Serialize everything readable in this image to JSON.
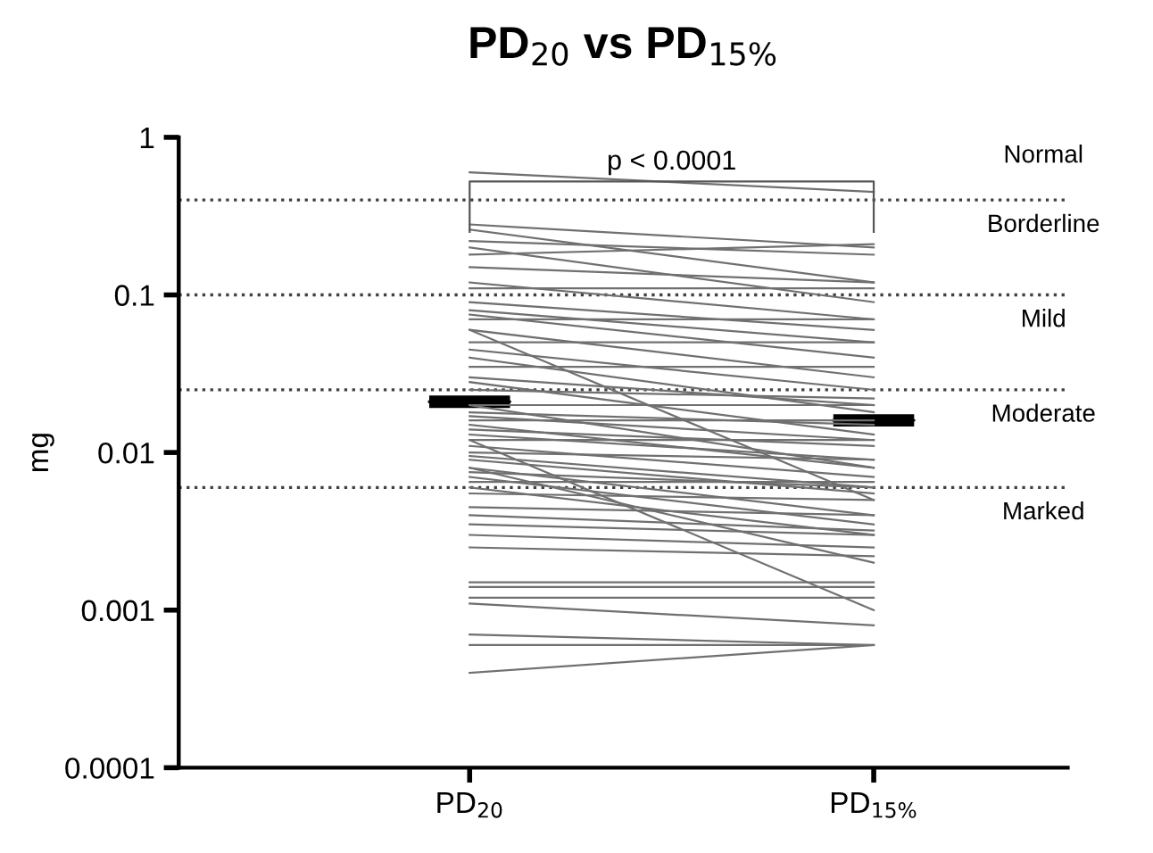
{
  "chart_data": {
    "type": "line",
    "title": "PD$_{20}$ vs PD$_{15%}$",
    "ylabel": "mg",
    "categories": [
      "PD$_{20}$",
      "PD$_{15%}$"
    ],
    "log": "y",
    "ylim": [
      0.0001,
      1
    ],
    "yticks": [
      0.0001,
      0.001,
      0.01,
      0.1,
      1
    ],
    "grid": false,
    "legend": false,
    "annotations": [
      "p < 0.0001",
      "Normal",
      "Borderline",
      "Mild",
      "Moderate",
      "Marked"
    ],
    "ref_lines": [
      {
        "axis": "y",
        "value": 0.4,
        "line_style": "dotted",
        "color": "#404040"
      },
      {
        "axis": "y",
        "value": 0.1,
        "line_style": "dotted",
        "color": "#404040"
      },
      {
        "axis": "y",
        "value": 0.025,
        "line_style": "dotted",
        "color": "#404040"
      },
      {
        "axis": "y",
        "value": 0.006,
        "line_style": "dotted",
        "color": "#404040"
      }
    ],
    "series": [
      {
        "color": "#707070",
        "values": [
          0.6,
          0.45
        ]
      },
      {
        "color": "#707070",
        "values": [
          0.28,
          0.2
        ]
      },
      {
        "color": "#707070",
        "values": [
          0.26,
          0.12
        ]
      },
      {
        "color": "#707070",
        "values": [
          0.22,
          0.18
        ]
      },
      {
        "color": "#707070",
        "values": [
          0.2,
          0.09
        ]
      },
      {
        "color": "#707070",
        "values": [
          0.18,
          0.21
        ]
      },
      {
        "color": "#707070",
        "values": [
          0.15,
          0.12
        ]
      },
      {
        "color": "#707070",
        "values": [
          0.12,
          0.07
        ]
      },
      {
        "color": "#707070",
        "values": [
          0.11,
          0.11
        ]
      },
      {
        "color": "#707070",
        "values": [
          0.09,
          0.06
        ]
      },
      {
        "color": "#707070",
        "values": [
          0.08,
          0.05
        ]
      },
      {
        "color": "#707070",
        "values": [
          0.075,
          0.04
        ]
      },
      {
        "color": "#707070",
        "values": [
          0.07,
          0.07
        ]
      },
      {
        "color": "#707070",
        "values": [
          0.06,
          0.03
        ]
      },
      {
        "color": "#707070",
        "values": [
          0.06,
          0.005
        ]
      },
      {
        "color": "#707070",
        "values": [
          0.05,
          0.05
        ]
      },
      {
        "color": "#707070",
        "values": [
          0.045,
          0.025
        ]
      },
      {
        "color": "#707070",
        "values": [
          0.04,
          0.018
        ]
      },
      {
        "color": "#707070",
        "values": [
          0.035,
          0.035
        ]
      },
      {
        "color": "#707070",
        "values": [
          0.03,
          0.02
        ]
      },
      {
        "color": "#707070",
        "values": [
          0.028,
          0.013
        ]
      },
      {
        "color": "#707070",
        "values": [
          0.025,
          0.022
        ]
      },
      {
        "color": "#707070",
        "values": [
          0.02,
          0.02
        ]
      },
      {
        "color": "#707070",
        "values": [
          0.02,
          0.008
        ]
      },
      {
        "color": "#707070",
        "values": [
          0.018,
          0.015
        ]
      },
      {
        "color": "#707070",
        "values": [
          0.017,
          0.012
        ]
      },
      {
        "color": "#707070",
        "values": [
          0.016,
          0.016
        ]
      },
      {
        "color": "#707070",
        "values": [
          0.015,
          0.008
        ]
      },
      {
        "color": "#707070",
        "values": [
          0.014,
          0.011
        ]
      },
      {
        "color": "#707070",
        "values": [
          0.013,
          0.009
        ]
      },
      {
        "color": "#707070",
        "values": [
          0.012,
          0.012
        ]
      },
      {
        "color": "#707070",
        "values": [
          0.012,
          0.001
        ]
      },
      {
        "color": "#707070",
        "values": [
          0.011,
          0.007
        ]
      },
      {
        "color": "#707070",
        "values": [
          0.01,
          0.009
        ]
      },
      {
        "color": "#707070",
        "values": [
          0.0095,
          0.006
        ]
      },
      {
        "color": "#707070",
        "values": [
          0.009,
          0.0055
        ]
      },
      {
        "color": "#707070",
        "values": [
          0.008,
          0.004
        ]
      },
      {
        "color": "#707070",
        "values": [
          0.008,
          0.002
        ]
      },
      {
        "color": "#707070",
        "values": [
          0.0075,
          0.006
        ]
      },
      {
        "color": "#707070",
        "values": [
          0.007,
          0.0035
        ]
      },
      {
        "color": "#707070",
        "values": [
          0.0065,
          0.0065
        ]
      },
      {
        "color": "#707070",
        "values": [
          0.006,
          0.003
        ]
      },
      {
        "color": "#707070",
        "values": [
          0.0055,
          0.005
        ]
      },
      {
        "color": "#707070",
        "values": [
          0.0045,
          0.004
        ]
      },
      {
        "color": "#707070",
        "values": [
          0.004,
          0.0032
        ]
      },
      {
        "color": "#707070",
        "values": [
          0.0035,
          0.003
        ]
      },
      {
        "color": "#707070",
        "values": [
          0.003,
          0.0025
        ]
      },
      {
        "color": "#707070",
        "values": [
          0.0025,
          0.0022
        ]
      },
      {
        "color": "#707070",
        "values": [
          0.0015,
          0.0015
        ]
      },
      {
        "color": "#707070",
        "values": [
          0.0014,
          0.0014
        ]
      },
      {
        "color": "#707070",
        "values": [
          0.0012,
          0.0012
        ]
      },
      {
        "color": "#707070",
        "values": [
          0.0011,
          0.0008
        ]
      },
      {
        "color": "#707070",
        "values": [
          0.0007,
          0.0006
        ]
      },
      {
        "color": "#707070",
        "values": [
          0.0006,
          0.0006
        ]
      },
      {
        "color": "#707070",
        "values": [
          0.0004,
          0.0006
        ]
      },
      {
        "type": "box",
        "color": "#000000",
        "boxes": [
          {
            "low": 0.021,
            "q1": 0.021,
            "median": 0.021,
            "q3": 0.021,
            "high": 0.021
          },
          {
            "low": 0.016,
            "q1": 0.016,
            "median": 0.016,
            "q3": 0.016,
            "high": 0.016
          }
        ]
      }
    ]
  }
}
